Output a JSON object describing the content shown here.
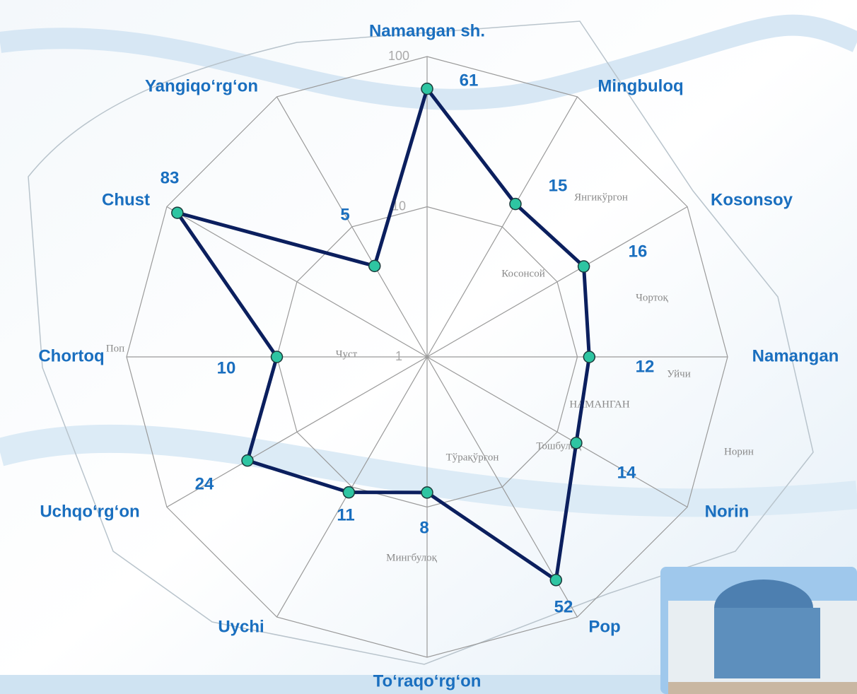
{
  "chart_data": {
    "type": "radar",
    "categories": [
      "Namangan sh.",
      "Mingbuloq",
      "Kosonsoy",
      "Namangan",
      "Norin",
      "Pop",
      "To‘raqo‘rg‘on",
      "Uychi",
      "Uchqo‘rg‘on",
      "Chortoq",
      "Chust",
      "Yangiqo‘rg‘on"
    ],
    "values": [
      61,
      15,
      16,
      12,
      14,
      52,
      8,
      11,
      24,
      10,
      83,
      5
    ],
    "color": "#0b1f5e",
    "marker_color": "#2ec5a2",
    "rlim": [
      1,
      100
    ],
    "rticks": [
      1,
      10,
      100
    ],
    "log_scale": true,
    "grid": true,
    "map_labels": [
      "Янгикўргон",
      "Косонсой",
      "Чортоқ",
      "Уйчи",
      "НАМАНГАН",
      "Норин",
      "Тошбулоқ",
      "Тўрақўрғон",
      "Мингбулоқ",
      "Чуст",
      "Поп"
    ]
  }
}
